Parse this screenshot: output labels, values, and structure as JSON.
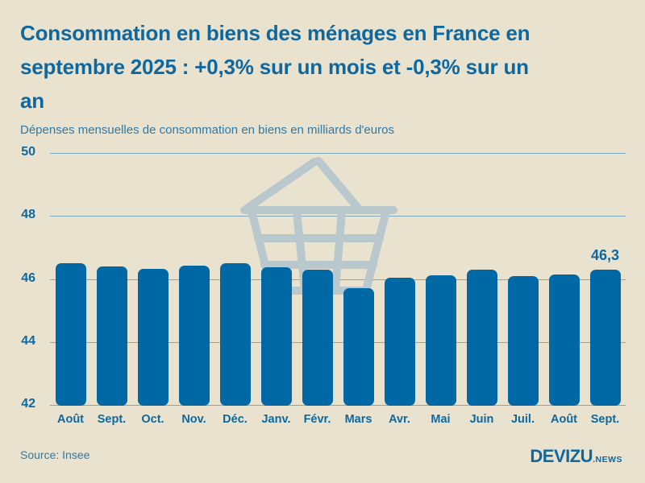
{
  "header": {
    "title_lines": [
      "Consommation en biens des ménages en France en",
      "septembre 2025 : +0,3% sur un mois et -0,3% sur un",
      "an"
    ],
    "subtitle": "Dépenses mensuelles de consommation en biens en milliards d'euros"
  },
  "chart_data": {
    "type": "bar",
    "title": "Consommation en biens des ménages en France en septembre 2025 : +0,3% sur un mois et -0,3% sur un an",
    "subtitle": "Dépenses mensuelles de consommation en biens en milliards d'euros",
    "categories": [
      "Août",
      "Sept.",
      "Oct.",
      "Nov.",
      "Déc.",
      "Janv.",
      "Févr.",
      "Mars",
      "Avr.",
      "Mai",
      "Juin",
      "Juil.",
      "Août",
      "Sept."
    ],
    "values": [
      46.5,
      46.4,
      46.33,
      46.42,
      46.5,
      46.37,
      46.3,
      45.7,
      46.05,
      46.12,
      46.3,
      46.08,
      46.15,
      46.3
    ],
    "ylim": [
      42,
      50
    ],
    "yticks": [
      50,
      48,
      46,
      44,
      42
    ],
    "grid": true,
    "legend": false,
    "xlabel": "",
    "ylabel": "milliards d'euros",
    "annotation": {
      "label": "46,3",
      "category_index": 13
    },
    "colors": {
      "bar": "#0068a4",
      "text": "#0e689f",
      "gridline": "#7aa7c2",
      "background": "#e8e2cf",
      "watermark": "#b9c8cd"
    }
  },
  "watermark_icon": "shopping-basket",
  "footer": {
    "source": "Source: Insee",
    "logo_main": "DEVIZU",
    "logo_suffix": ".NEWS"
  }
}
